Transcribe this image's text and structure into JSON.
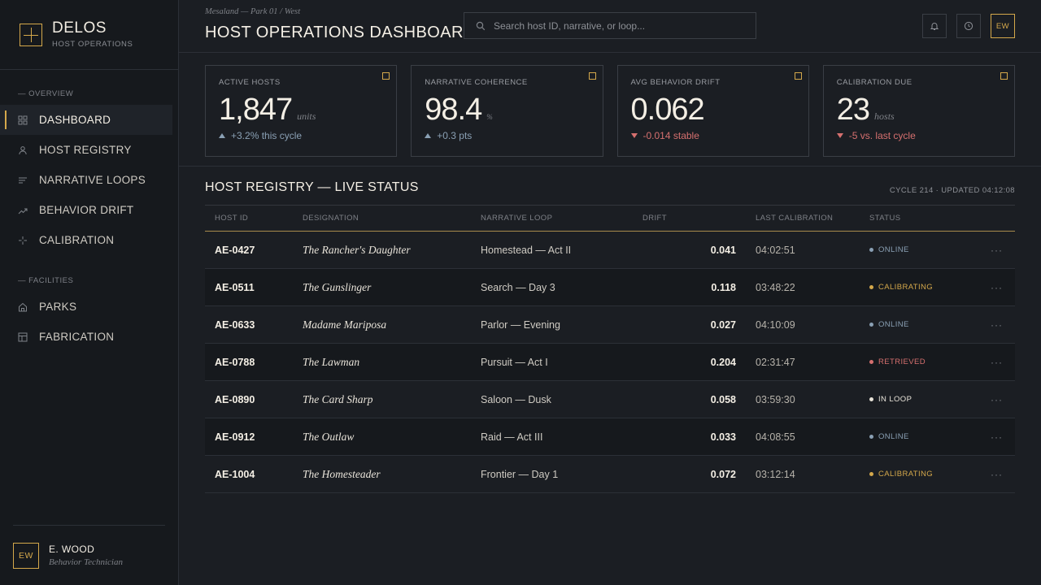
{
  "brand": {
    "name": "DELOS",
    "subtitle": "HOST OPERATIONS"
  },
  "nav": {
    "overview_label": "— OVERVIEW",
    "overview_items": [
      {
        "label": "DASHBOARD",
        "icon": "grid-icon",
        "active": true
      },
      {
        "label": "HOST REGISTRY",
        "icon": "person-icon"
      },
      {
        "label": "NARRATIVE LOOPS",
        "icon": "lines-icon"
      },
      {
        "label": "BEHAVIOR DRIFT",
        "icon": "trend-icon"
      },
      {
        "label": "CALIBRATION",
        "icon": "crosshair-icon"
      }
    ],
    "facilities_label": "— FACILITIES",
    "facilities_items": [
      {
        "label": "PARKS",
        "icon": "home-icon"
      },
      {
        "label": "FABRICATION",
        "icon": "layout-icon"
      }
    ]
  },
  "user": {
    "initials": "EW",
    "name": "E. WOOD",
    "role": "Behavior Technician"
  },
  "header": {
    "breadcrumb": "Mesaland — Park 01 / West",
    "title": "HOST OPERATIONS DASHBOARD",
    "search_placeholder": "Search host ID, narrative, or loop...",
    "user_initials": "EW"
  },
  "kpis": [
    {
      "label": "ACTIVE HOSTS",
      "value": "1,847",
      "unit": "units",
      "delta": "+3.2% this cycle",
      "direction": "up"
    },
    {
      "label": "NARRATIVE COHERENCE",
      "value": "98.4",
      "unit": "%",
      "delta": "+0.3 pts",
      "direction": "up"
    },
    {
      "label": "AVG BEHAVIOR DRIFT",
      "value": "0.062",
      "unit": "",
      "delta": "-0.014 stable",
      "direction": "down"
    },
    {
      "label": "CALIBRATION DUE",
      "value": "23",
      "unit": "hosts",
      "delta": "-5 vs. last cycle",
      "direction": "down"
    }
  ],
  "table": {
    "title": "HOST REGISTRY — LIVE STATUS",
    "meta": "CYCLE 214 · UPDATED 04:12:08",
    "columns": [
      "HOST ID",
      "DESIGNATION",
      "NARRATIVE LOOP",
      "DRIFT",
      "LAST CALIBRATION",
      "STATUS"
    ],
    "more_glyph": "···",
    "rows": [
      {
        "id": "AE-0427",
        "designation": "The Rancher's Daughter",
        "loop": "Homestead — Act II",
        "drift": "0.041",
        "calibration": "04:02:51",
        "status": "ONLINE"
      },
      {
        "id": "AE-0511",
        "designation": "The Gunslinger",
        "loop": "Search — Day 3",
        "drift": "0.118",
        "calibration": "03:48:22",
        "status": "CALIBRATING"
      },
      {
        "id": "AE-0633",
        "designation": "Madame Mariposa",
        "loop": "Parlor — Evening",
        "drift": "0.027",
        "calibration": "04:10:09",
        "status": "ONLINE"
      },
      {
        "id": "AE-0788",
        "designation": "The Lawman",
        "loop": "Pursuit — Act I",
        "drift": "0.204",
        "calibration": "02:31:47",
        "status": "RETRIEVED"
      },
      {
        "id": "AE-0890",
        "designation": "The Card Sharp",
        "loop": "Saloon — Dusk",
        "drift": "0.058",
        "calibration": "03:59:30",
        "status": "IN LOOP"
      },
      {
        "id": "AE-0912",
        "designation": "The Outlaw",
        "loop": "Raid — Act III",
        "drift": "0.033",
        "calibration": "04:08:55",
        "status": "ONLINE"
      },
      {
        "id": "AE-1004",
        "designation": "The Homesteader",
        "loop": "Frontier — Day 1",
        "drift": "0.072",
        "calibration": "03:12:14",
        "status": "CALIBRATING"
      }
    ]
  },
  "status_colors": {
    "ONLINE": "#8aa0b4",
    "CALIBRATING": "#d4a84b",
    "RETRIEVED": "#d6706f",
    "IN LOOP": "#e8e3d9"
  }
}
